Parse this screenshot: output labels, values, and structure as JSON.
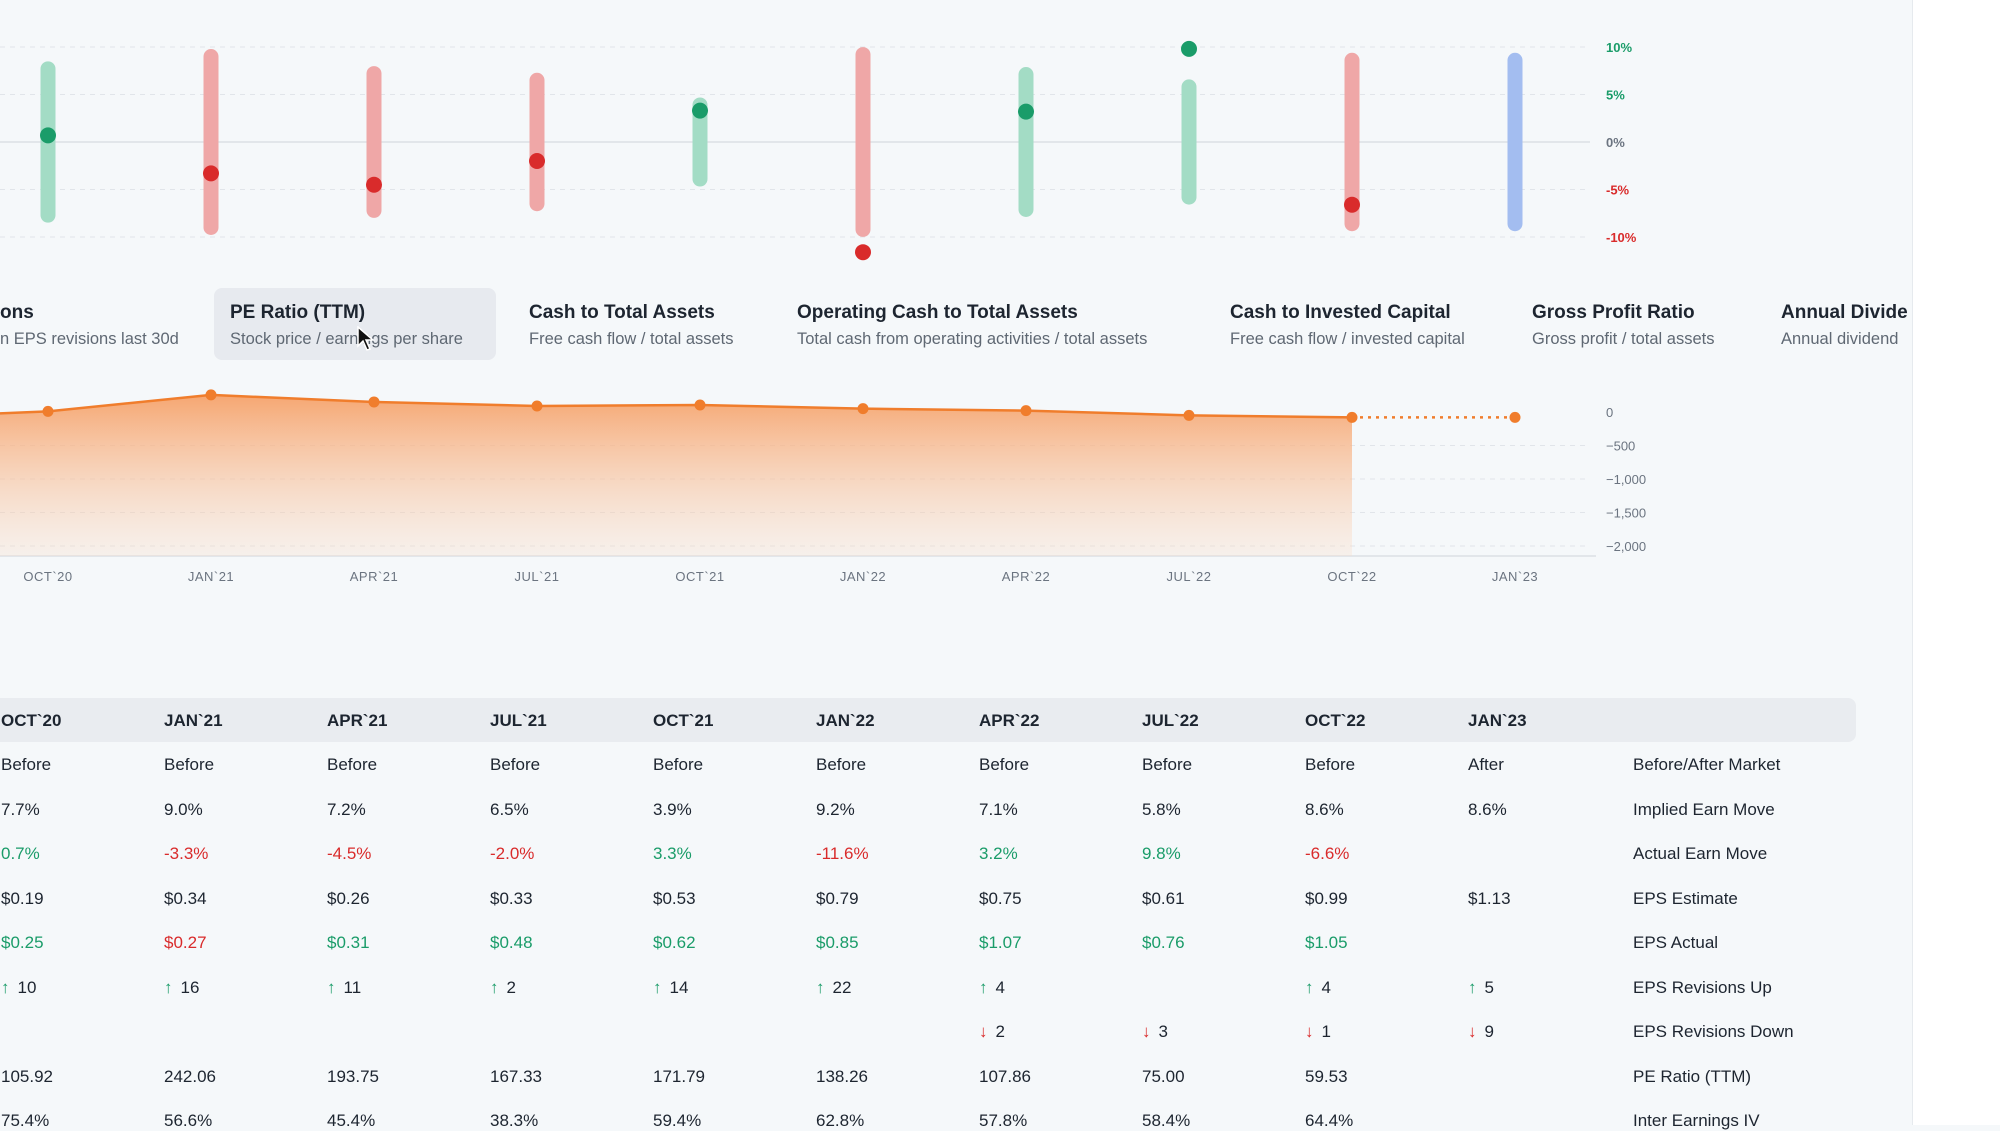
{
  "earn_move_chart": {
    "y_ticks": [
      {
        "label": "10%",
        "value": 10,
        "color": "#1a9c69"
      },
      {
        "label": "5%",
        "value": 5,
        "color": "#1a9c69"
      },
      {
        "label": "0%",
        "value": 0,
        "color": "#6b7480"
      },
      {
        "label": "-5%",
        "value": -5,
        "color": "#d92b2b"
      },
      {
        "label": "-10%",
        "value": -10,
        "color": "#d92b2b"
      }
    ],
    "quarters": [
      {
        "q": "OCT`20",
        "implied": 7.7,
        "actual": 0.7
      },
      {
        "q": "JAN`21",
        "implied": 9.0,
        "actual": -3.3
      },
      {
        "q": "APR`21",
        "implied": 7.2,
        "actual": -4.5
      },
      {
        "q": "JUL`21",
        "implied": 6.5,
        "actual": -2.0
      },
      {
        "q": "OCT`21",
        "implied": 3.9,
        "actual": 3.3
      },
      {
        "q": "JAN`22",
        "implied": 9.2,
        "actual": -11.6
      },
      {
        "q": "APR`22",
        "implied": 7.1,
        "actual": 3.2
      },
      {
        "q": "JUL`22",
        "implied": 5.8,
        "actual": 9.8
      },
      {
        "q": "OCT`22",
        "implied": 8.6,
        "actual": -6.6
      },
      {
        "q": "JAN`23",
        "implied": 8.6,
        "actual": null
      }
    ],
    "colors": {
      "up": "#1a9c69",
      "down": "#d92b2b",
      "up_bar": "#a3dcc5",
      "down_bar": "#efa7a7",
      "pending_bar": "#a3bdf0"
    }
  },
  "metric_tabs": [
    {
      "title": "ons",
      "subtitle": "n EPS revisions last 30d",
      "active": false
    },
    {
      "title": "PE Ratio (TTM)",
      "subtitle": "Stock price / earnings per share",
      "active": true
    },
    {
      "title": "Cash to Total Assets",
      "subtitle": "Free cash flow / total assets",
      "active": false
    },
    {
      "title": "Operating Cash to Total Assets",
      "subtitle": "Total cash from operating activities / total assets",
      "active": false
    },
    {
      "title": "Cash to Invested Capital",
      "subtitle": "Free cash flow / invested capital",
      "active": false
    },
    {
      "title": "Gross Profit Ratio",
      "subtitle": "Gross profit / total assets",
      "active": false
    },
    {
      "title": "Annual Divide",
      "subtitle": "Annual dividend",
      "active": false
    }
  ],
  "area_chart": {
    "type": "area",
    "series_values": [
      10,
      255,
      150,
      90,
      105,
      50,
      20,
      -50,
      -80
    ],
    "forecast_value": -80,
    "y_ticks": [
      "0",
      "−500",
      "−1,000",
      "−1,500",
      "−2,000"
    ],
    "y_tick_values": [
      0,
      -500,
      -1000,
      -1500,
      -2000
    ],
    "x_labels": [
      "OCT`20",
      "JAN`21",
      "APR`21",
      "JUL`21",
      "OCT`21",
      "JAN`22",
      "APR`22",
      "JUL`22",
      "OCT`22",
      "JAN`23"
    ],
    "color": "#f07d2c"
  },
  "table": {
    "headers": [
      "OCT`20",
      "JAN`21",
      "APR`21",
      "JUL`21",
      "OCT`21",
      "JAN`22",
      "APR`22",
      "JUL`22",
      "OCT`22",
      "JAN`23"
    ],
    "rows": [
      {
        "label": "Before/After Market",
        "type": "plain",
        "values": [
          "Before",
          "Before",
          "Before",
          "Before",
          "Before",
          "Before",
          "Before",
          "Before",
          "Before",
          "After"
        ]
      },
      {
        "label": "Implied Earn Move",
        "type": "plain",
        "values": [
          "7.7%",
          "9.0%",
          "7.2%",
          "6.5%",
          "3.9%",
          "9.2%",
          "7.1%",
          "5.8%",
          "8.6%",
          "8.6%"
        ]
      },
      {
        "label": "Actual Earn Move",
        "type": "signed",
        "values": [
          "0.7%",
          "-3.3%",
          "-4.5%",
          "-2.0%",
          "3.3%",
          "-11.6%",
          "3.2%",
          "9.8%",
          "-6.6%",
          ""
        ],
        "colors": [
          "green",
          "red",
          "red",
          "red",
          "green",
          "red",
          "green",
          "green",
          "red",
          ""
        ]
      },
      {
        "label": "EPS Estimate",
        "type": "plain",
        "values": [
          "$0.19",
          "$0.34",
          "$0.26",
          "$0.33",
          "$0.53",
          "$0.79",
          "$0.75",
          "$0.61",
          "$0.99",
          "$1.13"
        ]
      },
      {
        "label": "EPS Actual",
        "type": "signed",
        "values": [
          "$0.25",
          "$0.27",
          "$0.31",
          "$0.48",
          "$0.62",
          "$0.85",
          "$1.07",
          "$0.76",
          "$1.05",
          ""
        ],
        "colors": [
          "green",
          "red",
          "green",
          "green",
          "green",
          "green",
          "green",
          "green",
          "green",
          ""
        ]
      },
      {
        "label": "EPS Revisions Up",
        "type": "up",
        "values": [
          "10",
          "16",
          "11",
          "2",
          "14",
          "22",
          "4",
          "",
          "4",
          "5"
        ]
      },
      {
        "label": "EPS Revisions Down",
        "type": "down",
        "values": [
          "",
          "",
          "",
          "",
          "",
          "",
          "2",
          "3",
          "1",
          "9"
        ]
      },
      {
        "label": "PE Ratio (TTM)",
        "type": "plain",
        "values": [
          "105.92",
          "242.06",
          "193.75",
          "167.33",
          "171.79",
          "138.26",
          "107.86",
          "75.00",
          "59.53",
          ""
        ]
      },
      {
        "label": "Inter Earnings IV",
        "type": "plain",
        "values": [
          "75.4%",
          "56.6%",
          "45.4%",
          "38.3%",
          "59.4%",
          "62.8%",
          "57.8%",
          "58.4%",
          "64.4%",
          ""
        ]
      }
    ]
  }
}
